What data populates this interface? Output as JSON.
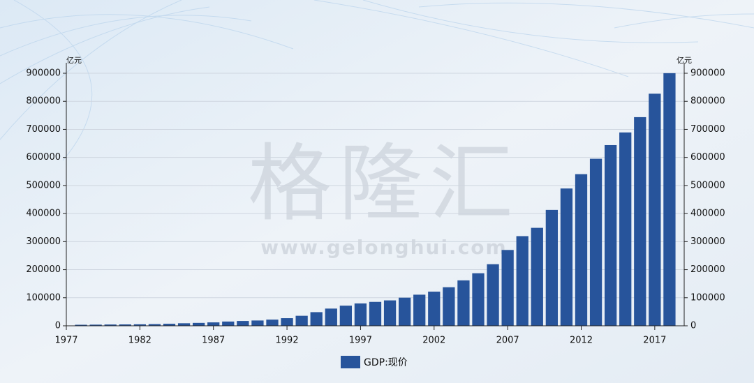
{
  "chart_data": {
    "type": "bar",
    "x": [
      1978,
      1979,
      1980,
      1981,
      1982,
      1983,
      1984,
      1985,
      1986,
      1987,
      1988,
      1989,
      1990,
      1991,
      1992,
      1993,
      1994,
      1995,
      1996,
      1997,
      1998,
      1999,
      2000,
      2001,
      2002,
      2003,
      2004,
      2005,
      2006,
      2007,
      2008,
      2009,
      2010,
      2011,
      2012,
      2013,
      2014,
      2015,
      2016,
      2017,
      2018
    ],
    "series": [
      {
        "name": "GDP:现价",
        "color": "#27549b",
        "values": [
          3679,
          4101,
          4588,
          4936,
          5373,
          6021,
          7279,
          9099,
          10376,
          12175,
          15180,
          17180,
          18873,
          22006,
          27195,
          35673,
          48638,
          61340,
          71814,
          79715,
          85196,
          90564,
          100280,
          110863,
          121717,
          137422,
          161840,
          187319,
          219439,
          270232,
          319516,
          349081,
          413030,
          489301,
          540367,
          595244,
          643974,
          689052,
          743586,
          827122,
          900309
        ]
      }
    ],
    "xlim": [
      1977,
      2019
    ],
    "xticks": [
      1977,
      1982,
      1987,
      1992,
      1997,
      2002,
      2007,
      2012,
      2017
    ],
    "ylim": [
      0,
      900000
    ],
    "yticks": [
      0,
      100000,
      200000,
      300000,
      400000,
      500000,
      600000,
      700000,
      800000,
      900000
    ],
    "y2lim": [
      0,
      900000
    ],
    "y2ticks": [
      0,
      100000,
      200000,
      300000,
      400000,
      500000,
      600000,
      700000,
      800000,
      900000
    ],
    "y_label": "亿元",
    "y2_label": "亿元",
    "grid": true,
    "legend": "bottom",
    "watermark": "格隆汇",
    "watermark_url": "www.gelonghui.com"
  }
}
